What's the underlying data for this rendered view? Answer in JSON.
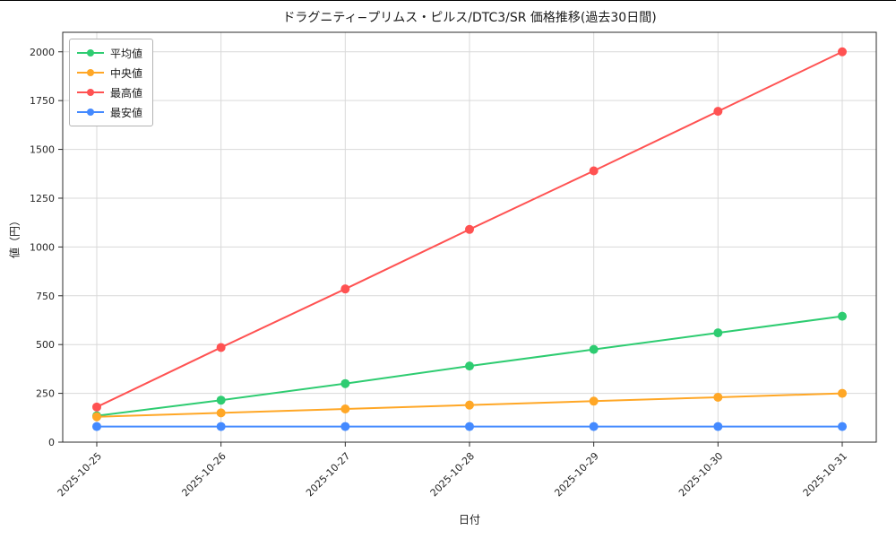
{
  "chart_data": {
    "type": "line",
    "title": "ドラグニティ−プリムス・ピルス/DTC3/SR 価格推移(過去30日間)",
    "xlabel": "日付",
    "ylabel": "値（円）",
    "categories": [
      "2025-10-25",
      "2025-10-26",
      "2025-10-27",
      "2025-10-28",
      "2025-10-29",
      "2025-10-30",
      "2025-10-31"
    ],
    "series": [
      {
        "name": "平均値",
        "color": "#2ecc71",
        "values": [
          135,
          215,
          300,
          390,
          475,
          560,
          645
        ]
      },
      {
        "name": "中央値",
        "color": "#ffa726",
        "values": [
          130,
          150,
          170,
          190,
          210,
          230,
          250
        ]
      },
      {
        "name": "最高値",
        "color": "#ff5252",
        "values": [
          180,
          485,
          785,
          1090,
          1390,
          1695,
          2000
        ]
      },
      {
        "name": "最安値",
        "color": "#448aff",
        "values": [
          80,
          80,
          80,
          80,
          80,
          80,
          80
        ]
      }
    ],
    "yticks": [
      0,
      250,
      500,
      750,
      1000,
      1250,
      1500,
      1750,
      2000
    ],
    "ylim": [
      0,
      2100
    ],
    "grid": true,
    "legend_position": "upper-left"
  },
  "colors": {
    "grid": "#d9d9d9",
    "spine": "#2b2b2b",
    "tick_text": "#262626",
    "background": "#ffffff"
  }
}
